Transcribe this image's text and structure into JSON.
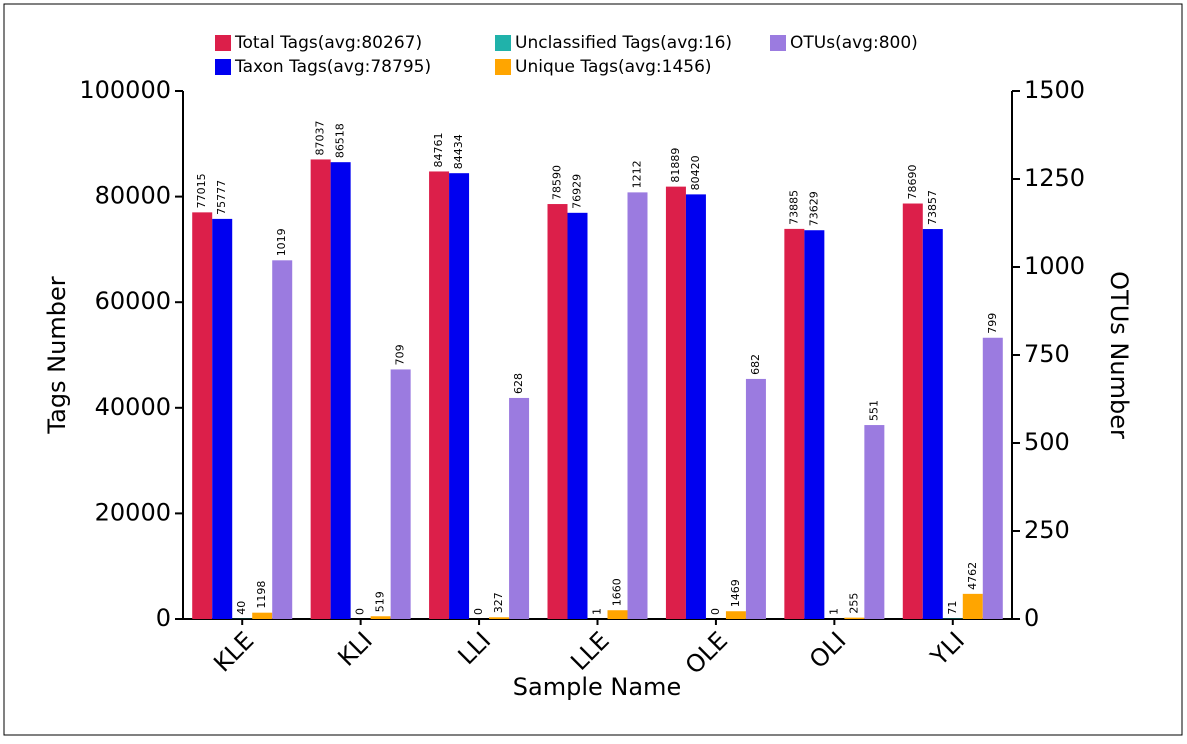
{
  "chart_data": {
    "type": "bar",
    "x_label": "Sample Name",
    "y_label": "Tags Number",
    "y2_label": "OTUs Number",
    "categories": [
      "KLE",
      "KLI",
      "LLI",
      "LLE",
      "OLE",
      "OLI",
      "YLI"
    ],
    "series": [
      {
        "name": "Total Tags(avg:80267)",
        "color": "#dc1f4a",
        "values": [
          77015,
          87037,
          84761,
          78590,
          81889,
          73885,
          78690
        ]
      },
      {
        "name": "Taxon Tags(avg:78795)",
        "color": "#0000f0",
        "values": [
          75777,
          86518,
          84434,
          76929,
          80420,
          73629,
          73857
        ]
      },
      {
        "name": "Unclassified Tags(avg:16)",
        "color": "#20b2aa",
        "values": [
          40,
          0,
          0,
          1,
          0,
          1,
          71
        ]
      },
      {
        "name": "Unique Tags(avg:1456)",
        "color": "#ffa500",
        "values": [
          1198,
          519,
          327,
          1660,
          1469,
          255,
          4762
        ]
      },
      {
        "name": "OTUs(avg:800)",
        "color": "#9b7be0",
        "axis": "y2",
        "values": [
          1019,
          709,
          628,
          1212,
          682,
          551,
          799
        ]
      }
    ],
    "ylim": [
      0,
      100000
    ],
    "yticks": [
      0,
      20000,
      40000,
      60000,
      80000,
      100000
    ],
    "y2lim": [
      0,
      1500
    ],
    "y2ticks": [
      0,
      250,
      500,
      750,
      1000,
      1250,
      1500
    ]
  }
}
